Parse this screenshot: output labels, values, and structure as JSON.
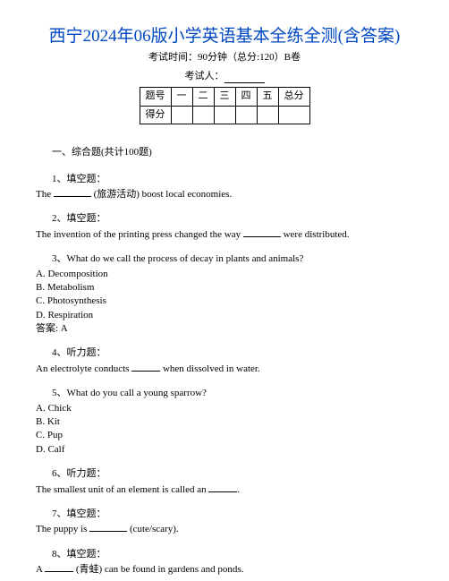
{
  "title": "西宁2024年06版小学英语基本全练全测(含答案)",
  "subtitle": "考试时间：90分钟（总分:120）B卷",
  "examiner_label": "考试人：",
  "table": {
    "row1": [
      "题号",
      "一",
      "二",
      "三",
      "四",
      "五",
      "总分"
    ],
    "row2": [
      "得分",
      "",
      "",
      "",
      "",
      "",
      ""
    ]
  },
  "section_header": "一、综合题(共计100题)",
  "questions": [
    {
      "num": "1、填空题：",
      "body_pre": "The ",
      "body_post": " (旅游活动) boost local economies.",
      "blank_width": 42
    },
    {
      "num": "2、填空题：",
      "body_pre": "The invention of the printing press changed the way ",
      "body_post": " were distributed.",
      "blank_width": 42
    },
    {
      "num": "3、What do we call the process of decay in plants and animals?",
      "opts": [
        "A. Decomposition",
        "B. Metabolism",
        "C. Photosynthesis",
        "D. Respiration"
      ],
      "answer": "答案: A"
    },
    {
      "num": "4、听力题：",
      "body_pre": "An electrolyte conducts ",
      "body_post": " when dissolved in water.",
      "blank_width": 36
    },
    {
      "num": "5、What do you call a young sparrow?",
      "opts": [
        "A. Chick",
        "B. Kit",
        "C. Pup",
        "D. Calf"
      ]
    },
    {
      "num": "6、听力题：",
      "body_pre": "The smallest unit of an element is called an ",
      "body_post": ".",
      "blank_width": 32
    },
    {
      "num": "7、填空题：",
      "body_pre": "The puppy is ",
      "body_post": " (cute/scary).",
      "blank_width": 42
    },
    {
      "num": "8、填空题：",
      "body_pre": "A ",
      "body_post": " (青蛙) can be found in gardens and ponds.",
      "blank_width": 36
    }
  ]
}
